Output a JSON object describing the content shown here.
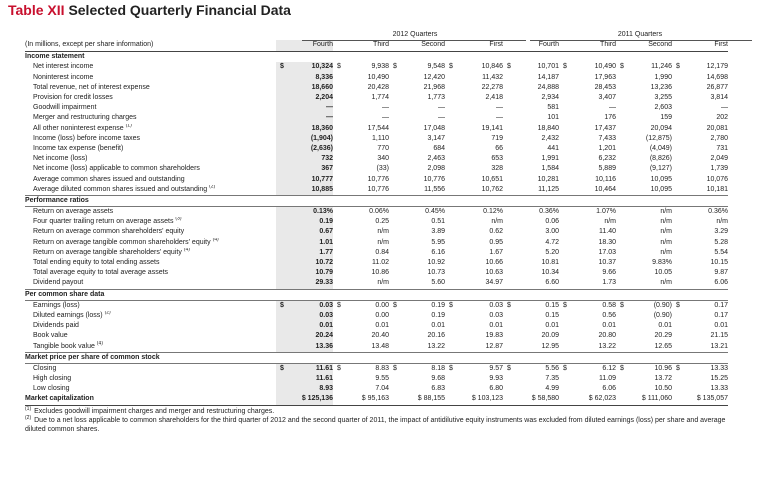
{
  "title": {
    "number": "Table XII",
    "text": "Selected Quarterly Financial Data"
  },
  "group_headers": [
    "2012 Quarters",
    "2011 Quarters"
  ],
  "header": {
    "label": "(In millions, except per share information)",
    "columns": [
      "Fourth",
      "Third",
      "Second",
      "First",
      "Fourth",
      "Third",
      "Second",
      "First"
    ]
  },
  "sections": [
    {
      "title": "Income statement",
      "rows": [
        {
          "label": "Net interest income",
          "fn": "",
          "cur": true,
          "values": [
            "10,324",
            "9,938",
            "9,548",
            "10,846",
            "10,701",
            "10,490",
            "11,246",
            "12,179"
          ]
        },
        {
          "label": "Noninterest income",
          "fn": "",
          "cur": false,
          "values": [
            "8,336",
            "10,490",
            "12,420",
            "11,432",
            "14,187",
            "17,963",
            "1,990",
            "14,698"
          ]
        },
        {
          "label": "Total revenue, net of interest expense",
          "fn": "",
          "cur": false,
          "values": [
            "18,660",
            "20,428",
            "21,968",
            "22,278",
            "24,888",
            "28,453",
            "13,236",
            "26,877"
          ]
        },
        {
          "label": "Provision for credit losses",
          "fn": "",
          "cur": false,
          "values": [
            "2,204",
            "1,774",
            "1,773",
            "2,418",
            "2,934",
            "3,407",
            "3,255",
            "3,814"
          ]
        },
        {
          "label": "Goodwill impairment",
          "fn": "",
          "cur": false,
          "values": [
            "—",
            "—",
            "—",
            "—",
            "581",
            "—",
            "2,603",
            "—"
          ]
        },
        {
          "label": "Merger and restructuring charges",
          "fn": "",
          "cur": false,
          "values": [
            "—",
            "—",
            "—",
            "—",
            "101",
            "176",
            "159",
            "202"
          ]
        },
        {
          "label": "All other noninterest expense",
          "fn": "(1)",
          "cur": false,
          "values": [
            "18,360",
            "17,544",
            "17,048",
            "19,141",
            "18,840",
            "17,437",
            "20,094",
            "20,081"
          ]
        },
        {
          "label": "Income (loss) before income taxes",
          "fn": "",
          "cur": false,
          "values": [
            "(1,904)",
            "1,110",
            "3,147",
            "719",
            "2,432",
            "7,433",
            "(12,875)",
            "2,780"
          ]
        },
        {
          "label": "Income tax expense (benefit)",
          "fn": "",
          "cur": false,
          "values": [
            "(2,636)",
            "770",
            "684",
            "66",
            "441",
            "1,201",
            "(4,049)",
            "731"
          ]
        },
        {
          "label": "Net income (loss)",
          "fn": "",
          "cur": false,
          "values": [
            "732",
            "340",
            "2,463",
            "653",
            "1,991",
            "6,232",
            "(8,826)",
            "2,049"
          ]
        },
        {
          "label": "Net income (loss) applicable to common shareholders",
          "fn": "",
          "cur": false,
          "values": [
            "367",
            "(33)",
            "2,098",
            "328",
            "1,584",
            "5,889",
            "(9,127)",
            "1,739"
          ]
        },
        {
          "label": "Average common shares issued and outstanding",
          "fn": "",
          "cur": false,
          "values": [
            "10,777",
            "10,776",
            "10,776",
            "10,651",
            "10,281",
            "10,116",
            "10,095",
            "10,076"
          ]
        },
        {
          "label": "Average diluted common shares issued and outstanding",
          "fn": "(2)",
          "cur": false,
          "values": [
            "10,885",
            "10,776",
            "11,556",
            "10,762",
            "11,125",
            "10,464",
            "10,095",
            "10,181"
          ]
        }
      ]
    },
    {
      "title": "Performance ratios",
      "rows": [
        {
          "label": "Return on average assets",
          "fn": "",
          "cur": false,
          "values": [
            "0.13%",
            "0.06%",
            "0.45%",
            "0.12%",
            "0.36%",
            "1.07%",
            "n/m",
            "0.36%"
          ]
        },
        {
          "label": "Four quarter trailing return on average assets",
          "fn": "(3)",
          "cur": false,
          "values": [
            "0.19",
            "0.25",
            "0.51",
            "n/m",
            "0.06",
            "n/m",
            "n/m",
            "n/m"
          ]
        },
        {
          "label": "Return on average common shareholders' equity",
          "fn": "",
          "cur": false,
          "values": [
            "0.67",
            "n/m",
            "3.89",
            "0.62",
            "3.00",
            "11.40",
            "n/m",
            "3.29"
          ]
        },
        {
          "label": "Return on average tangible common shareholders' equity",
          "fn": "(4)",
          "cur": false,
          "values": [
            "1.01",
            "n/m",
            "5.95",
            "0.95",
            "4.72",
            "18.30",
            "n/m",
            "5.28"
          ]
        },
        {
          "label": "Return on average tangible shareholders' equity",
          "fn": "(4)",
          "cur": false,
          "values": [
            "1.77",
            "0.84",
            "6.16",
            "1.67",
            "5.20",
            "17.03",
            "n/m",
            "5.54"
          ]
        },
        {
          "label": "Total ending equity to total ending assets",
          "fn": "",
          "cur": false,
          "values": [
            "10.72",
            "11.02",
            "10.92",
            "10.66",
            "10.81",
            "10.37",
            "9.83%",
            "10.15"
          ]
        },
        {
          "label": "Total average equity to total average assets",
          "fn": "",
          "cur": false,
          "values": [
            "10.79",
            "10.86",
            "10.73",
            "10.63",
            "10.34",
            "9.66",
            "10.05",
            "9.87"
          ]
        },
        {
          "label": "Dividend payout",
          "fn": "",
          "cur": false,
          "values": [
            "29.33",
            "n/m",
            "5.60",
            "34.97",
            "6.60",
            "1.73",
            "n/m",
            "6.06"
          ]
        }
      ]
    },
    {
      "title": "Per common share data",
      "rows": [
        {
          "label": "Earnings (loss)",
          "fn": "",
          "cur": true,
          "values": [
            "0.03",
            "0.00",
            "0.19",
            "0.03",
            "0.15",
            "0.58",
            "(0.90)",
            "0.17"
          ]
        },
        {
          "label": "Diluted earnings (loss)",
          "fn": "(2)",
          "cur": false,
          "values": [
            "0.03",
            "0.00",
            "0.19",
            "0.03",
            "0.15",
            "0.56",
            "(0.90)",
            "0.17"
          ]
        },
        {
          "label": "Dividends paid",
          "fn": "",
          "cur": false,
          "values": [
            "0.01",
            "0.01",
            "0.01",
            "0.01",
            "0.01",
            "0.01",
            "0.01",
            "0.01"
          ]
        },
        {
          "label": "Book value",
          "fn": "",
          "cur": false,
          "values": [
            "20.24",
            "20.40",
            "20.16",
            "19.83",
            "20.09",
            "20.80",
            "20.29",
            "21.15"
          ]
        },
        {
          "label": "Tangible book value",
          "fn": "(4)",
          "cur": false,
          "values": [
            "13.36",
            "13.48",
            "13.22",
            "12.87",
            "12.95",
            "13.22",
            "12.65",
            "13.21"
          ]
        }
      ]
    },
    {
      "title": "Market price per share of common stock",
      "rows": [
        {
          "label": "Closing",
          "fn": "",
          "cur": true,
          "values": [
            "11.61",
            "8.83",
            "8.18",
            "9.57",
            "5.56",
            "6.12",
            "10.96",
            "13.33"
          ]
        },
        {
          "label": "High closing",
          "fn": "",
          "cur": false,
          "values": [
            "11.61",
            "9.55",
            "9.68",
            "9.93",
            "7.35",
            "11.09",
            "13.72",
            "15.25"
          ]
        },
        {
          "label": "Low closing",
          "fn": "",
          "cur": false,
          "values": [
            "8.93",
            "7.04",
            "6.83",
            "6.80",
            "4.99",
            "6.06",
            "10.50",
            "13.33"
          ]
        }
      ]
    }
  ],
  "market_cap": {
    "label": "Market capitalization",
    "values": [
      "$ 125,136",
      "$ 95,163",
      "$ 88,155",
      "$ 103,123",
      "$ 58,580",
      "$ 62,023",
      "$ 111,060",
      "$ 135,057"
    ]
  },
  "currency_symbol": "$",
  "footnotes": [
    {
      "mark": "(1)",
      "text": "Excludes goodwill impairment charges and merger and restructuring charges."
    },
    {
      "mark": "(2)",
      "text": "Due to a net loss applicable to common shareholders for the third quarter of 2012 and the second quarter of 2011, the impact of antidilutive equity instruments was excluded from diluted earnings (loss) per share and average diluted common shares."
    }
  ],
  "colors": {
    "title_accent": "#c8102e",
    "highlight_column": "#e9e9e9"
  }
}
